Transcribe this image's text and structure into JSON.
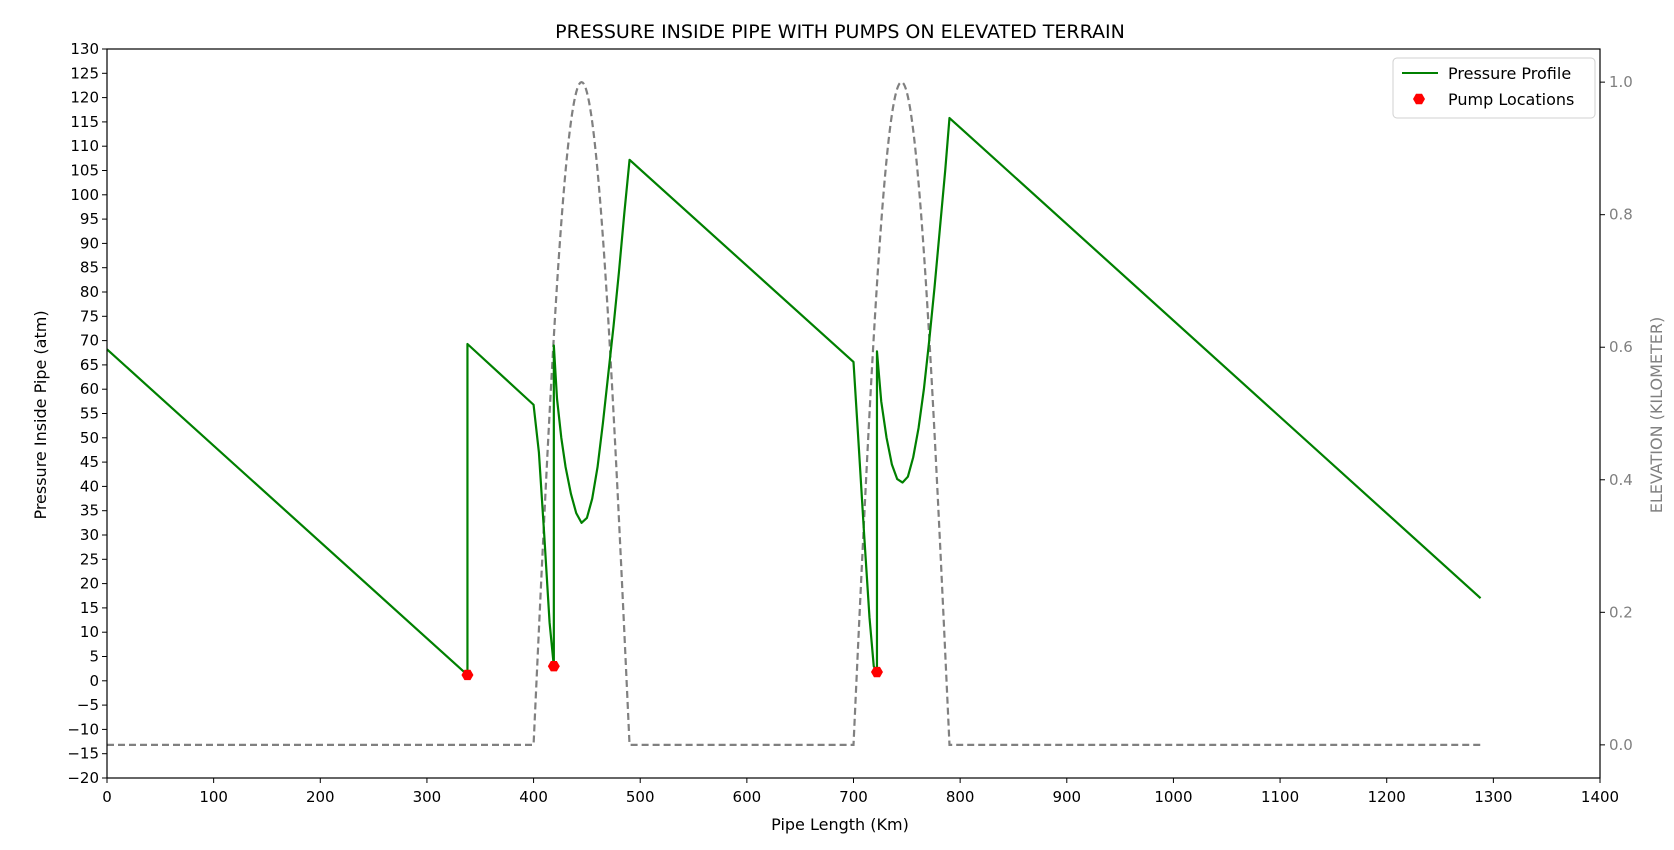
{
  "chart_data": {
    "type": "line",
    "title": "PRESSURE INSIDE PIPE WITH PUMPS ON ELEVATED TERRAIN",
    "xlabel": "Pipe Length (Km)",
    "ylabel": "Pressure Inside Pipe (atm)",
    "y2label": "ELEVATION (KILOMETER)",
    "xlim": [
      0,
      1400
    ],
    "ylim": [
      -20,
      130
    ],
    "y2lim": [
      -0.05,
      1.05
    ],
    "x_ticks": [
      0,
      100,
      200,
      300,
      400,
      500,
      600,
      700,
      800,
      900,
      1000,
      1100,
      1200,
      1300,
      1400
    ],
    "y_ticks": [
      -20,
      -15,
      -10,
      -5,
      0,
      5,
      10,
      15,
      20,
      25,
      30,
      35,
      40,
      45,
      50,
      55,
      60,
      65,
      70,
      75,
      80,
      85,
      90,
      95,
      100,
      105,
      110,
      115,
      120,
      125,
      130
    ],
    "y2_ticks": [
      0.0,
      0.2,
      0.4,
      0.6,
      0.8,
      1.0
    ],
    "legend_position": "top-right",
    "series": [
      {
        "name": "Pressure Profile",
        "color": "#008000",
        "style": "solid",
        "axis": "left",
        "points": [
          [
            0,
            68.2
          ],
          [
            338,
            1.2
          ],
          [
            338,
            69.3
          ],
          [
            400,
            56.8
          ],
          [
            405,
            47
          ],
          [
            410,
            30
          ],
          [
            415,
            12
          ],
          [
            419,
            3.0
          ],
          [
            419,
            69.0
          ],
          [
            422,
            58
          ],
          [
            426,
            50
          ],
          [
            430,
            44
          ],
          [
            435,
            38.5
          ],
          [
            440,
            34.5
          ],
          [
            445,
            32.5
          ],
          [
            450,
            33.5
          ],
          [
            455,
            37.5
          ],
          [
            460,
            44
          ],
          [
            465,
            53
          ],
          [
            470,
            63
          ],
          [
            475,
            73
          ],
          [
            480,
            84
          ],
          [
            485,
            96
          ],
          [
            490,
            107.2
          ],
          [
            700,
            65.6
          ],
          [
            705,
            48
          ],
          [
            710,
            30
          ],
          [
            715,
            13
          ],
          [
            719,
            3.0
          ],
          [
            722,
            1.8
          ],
          [
            722,
            67.8
          ],
          [
            726,
            57.5
          ],
          [
            731,
            50
          ],
          [
            736,
            44.5
          ],
          [
            741,
            41.5
          ],
          [
            746,
            40.8
          ],
          [
            751,
            42
          ],
          [
            756,
            46
          ],
          [
            761,
            52
          ],
          [
            766,
            60
          ],
          [
            771,
            70
          ],
          [
            776,
            81
          ],
          [
            781,
            93
          ],
          [
            786,
            105
          ],
          [
            790,
            115.8
          ],
          [
            1288,
            17.0
          ]
        ]
      },
      {
        "name": "Elevation",
        "color": "#808080",
        "style": "dashed",
        "axis": "right",
        "generator": "sin_bumps",
        "bumps": [
          [
            400,
            490
          ],
          [
            700,
            790
          ]
        ],
        "x_range": [
          0,
          1288
        ]
      }
    ],
    "markers": {
      "name": "Pump Locations",
      "color": "#ff0000",
      "points": [
        [
          338,
          1.2
        ],
        [
          419,
          3.0
        ],
        [
          722,
          1.8
        ]
      ]
    }
  }
}
